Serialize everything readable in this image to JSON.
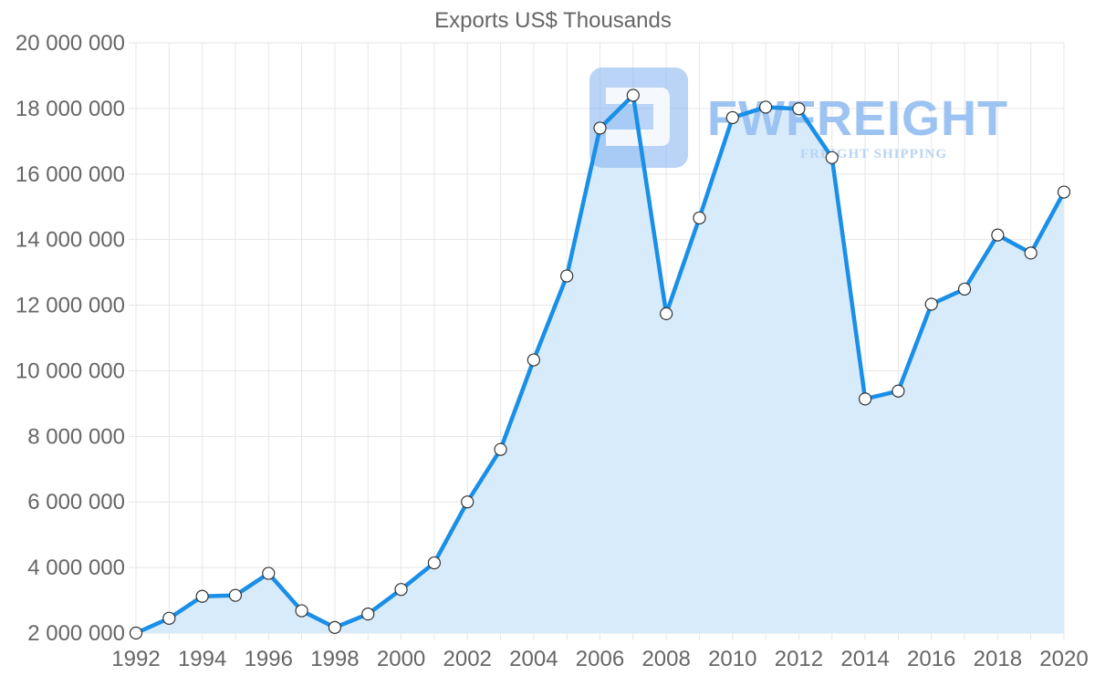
{
  "chart_data": {
    "type": "area",
    "title": "Exports US$ Thousands",
    "xlabel": "",
    "ylabel": "",
    "x": [
      1992,
      1993,
      1994,
      1995,
      1996,
      1997,
      1998,
      1999,
      2000,
      2001,
      2002,
      2003,
      2004,
      2005,
      2006,
      2007,
      2008,
      2009,
      2010,
      2011,
      2012,
      2013,
      2014,
      2015,
      2016,
      2017,
      2018,
      2019,
      2020
    ],
    "series": [
      {
        "name": "Exports US$ Thousands",
        "values": [
          2000000,
          2450000,
          3120000,
          3150000,
          3820000,
          2680000,
          2170000,
          2580000,
          3330000,
          4140000,
          6000000,
          7600000,
          10330000,
          12890000,
          17400000,
          18400000,
          11740000,
          14660000,
          17720000,
          18040000,
          17990000,
          16500000,
          9140000,
          9380000,
          12030000,
          12490000,
          14140000,
          13590000,
          15450000
        ]
      }
    ],
    "xlim": [
      1992,
      2020
    ],
    "ylim": [
      2000000,
      20000000
    ],
    "x_ticks": [
      1992,
      1994,
      1996,
      1998,
      2000,
      2002,
      2004,
      2006,
      2008,
      2010,
      2012,
      2014,
      2016,
      2018,
      2020
    ],
    "x_tick_labels": [
      "1992",
      "1994",
      "1996",
      "1998",
      "2000",
      "2002",
      "2004",
      "2006",
      "2008",
      "2010",
      "2012",
      "2014",
      "2016",
      "2018",
      "2020"
    ],
    "y_ticks": [
      2000000,
      4000000,
      6000000,
      8000000,
      10000000,
      12000000,
      14000000,
      16000000,
      18000000,
      20000000
    ],
    "y_tick_labels": [
      "2 000 000",
      "4 000 000",
      "6 000 000",
      "8 000 000",
      "10 000 000",
      "12 000 000",
      "14 000 000",
      "16 000 000",
      "18 000 000",
      "20 000 000"
    ],
    "grid": true,
    "legend": "none",
    "colors": {
      "line": "#1a8fe8",
      "fill": "#d8ebfb",
      "grid": "#e6e6e6",
      "point_fill": "#ffffff",
      "point_stroke": "#333333"
    }
  },
  "watermark": {
    "brand": "FWFREIGHT",
    "tagline": "FREIGHT SHIPPING"
  }
}
